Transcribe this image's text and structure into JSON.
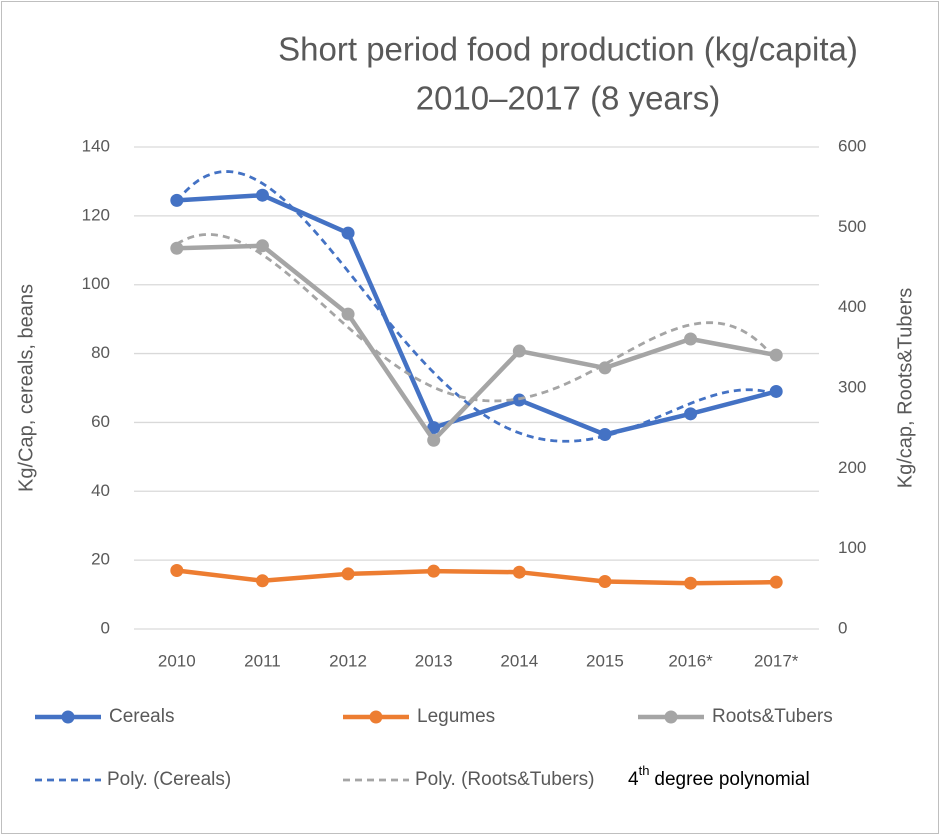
{
  "chart_data": {
    "type": "line",
    "title": [
      "Short period food production (kg/capita)",
      "2010–2017 (8 years)"
    ],
    "y_label": "Kg/Cap, cereals, beans",
    "y2_label": "Kg/cap, Roots&Tubers",
    "categories": [
      "2010",
      "2011",
      "2012",
      "2013",
      "2014",
      "2015",
      "2016*",
      "2017*"
    ],
    "series": [
      {
        "name": "Cereals",
        "color": "#4472c4",
        "values": [
          124.5,
          126,
          115,
          58.5,
          66.5,
          56.5,
          62.5,
          69
        ],
        "trendline": {
          "name": "Poly. (Cereals)",
          "order": 4
        }
      },
      {
        "name": "Legumes",
        "color": "#ed7d31",
        "values": [
          17,
          14,
          16,
          16.8,
          16.5,
          13.8,
          13.3,
          13.6
        ]
      },
      {
        "name": "Roots&Tubers",
        "color": "#a5a5a5",
        "axis": "y2",
        "values": [
          474,
          477,
          392,
          235,
          346,
          325,
          361,
          341
        ],
        "trendline": {
          "name": "Poly. (Roots&Tubers)",
          "order": 4
        }
      }
    ],
    "ylim": [
      0,
      140
    ],
    "yticks": [
      0,
      20,
      40,
      60,
      80,
      100,
      120,
      140
    ],
    "y2lim": [
      0,
      600
    ],
    "y2ticks": [
      0,
      100,
      200,
      300,
      400,
      500,
      600
    ],
    "grid": true,
    "legend": "bottom",
    "annotation": {
      "base": "4",
      "superscript": "th",
      "rest": "degree polynomial"
    }
  }
}
